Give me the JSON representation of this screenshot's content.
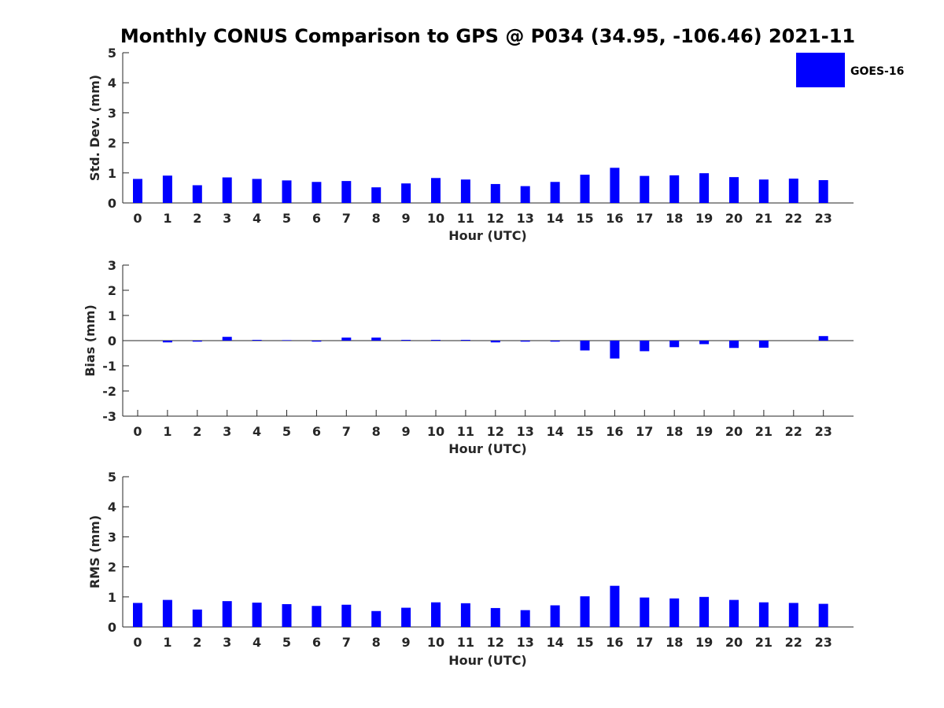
{
  "title": "Monthly CONUS Comparison to GPS @ P034 (34.95, -106.46) 2021-11",
  "legend": {
    "label": "GOES-16",
    "color": "#0000ff"
  },
  "chart_data": [
    {
      "type": "bar",
      "name": "std-dev",
      "categories": [
        "0",
        "1",
        "2",
        "3",
        "4",
        "5",
        "6",
        "7",
        "8",
        "9",
        "10",
        "11",
        "12",
        "13",
        "14",
        "15",
        "16",
        "17",
        "18",
        "19",
        "20",
        "21",
        "22",
        "23"
      ],
      "values": [
        0.8,
        0.91,
        0.59,
        0.85,
        0.8,
        0.75,
        0.7,
        0.73,
        0.52,
        0.65,
        0.83,
        0.78,
        0.63,
        0.56,
        0.7,
        0.94,
        1.17,
        0.9,
        0.92,
        0.99,
        0.86,
        0.78,
        0.81,
        0.76
      ],
      "xlabel": "Hour (UTC)",
      "ylabel": "Std. Dev. (mm)",
      "ylim": [
        0,
        5
      ],
      "yticks": [
        "0",
        "1",
        "2",
        "3",
        "4",
        "5"
      ],
      "color": "#0000ff"
    },
    {
      "type": "bar",
      "name": "bias",
      "categories": [
        "0",
        "1",
        "2",
        "3",
        "4",
        "5",
        "6",
        "7",
        "8",
        "9",
        "10",
        "11",
        "12",
        "13",
        "14",
        "15",
        "16",
        "17",
        "18",
        "19",
        "20",
        "21",
        "22",
        "23"
      ],
      "values": [
        0.0,
        -0.07,
        -0.04,
        0.15,
        0.03,
        0.02,
        -0.04,
        0.12,
        0.12,
        0.03,
        0.03,
        0.03,
        -0.07,
        -0.04,
        -0.04,
        -0.39,
        -0.71,
        -0.42,
        -0.26,
        -0.14,
        -0.29,
        -0.28,
        0.0,
        0.18
      ],
      "xlabel": "Hour (UTC)",
      "ylabel": "Bias (mm)",
      "ylim": [
        -3,
        3
      ],
      "yticks": [
        "-3",
        "-2",
        "-1",
        "0",
        "1",
        "2",
        "3"
      ],
      "color": "#0000ff"
    },
    {
      "type": "bar",
      "name": "rms",
      "categories": [
        "0",
        "1",
        "2",
        "3",
        "4",
        "5",
        "6",
        "7",
        "8",
        "9",
        "10",
        "11",
        "12",
        "13",
        "14",
        "15",
        "16",
        "17",
        "18",
        "19",
        "20",
        "21",
        "22",
        "23"
      ],
      "values": [
        0.8,
        0.9,
        0.58,
        0.86,
        0.81,
        0.76,
        0.7,
        0.74,
        0.53,
        0.64,
        0.82,
        0.79,
        0.63,
        0.56,
        0.72,
        1.02,
        1.37,
        0.98,
        0.95,
        1.0,
        0.9,
        0.82,
        0.8,
        0.77
      ],
      "xlabel": "Hour (UTC)",
      "ylabel": "RMS (mm)",
      "ylim": [
        0,
        5
      ],
      "yticks": [
        "0",
        "1",
        "2",
        "3",
        "4",
        "5"
      ],
      "color": "#0000ff"
    }
  ]
}
